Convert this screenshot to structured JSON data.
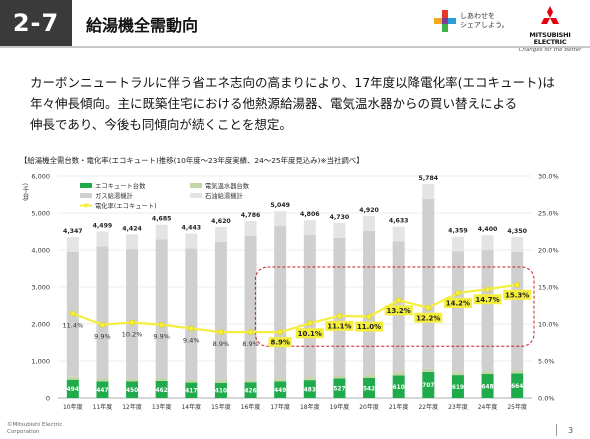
{
  "header": {
    "section": "2-7",
    "title": "給湯機全需動向",
    "logo_share_line1": "しあわせを",
    "logo_share_line2": "シェアしよう。",
    "logo_brand_line1": "MITSUBISHI",
    "logo_brand_line2": "ELECTRIC",
    "logo_slogan": "Changes for the Better"
  },
  "lead": {
    "line1": "カーボンニュートラルに伴う省エネ志向の高まりにより、17年度以降電化率(エコキュート)は",
    "line2": "年々伸長傾向。主に既築住宅における他熱源給湯器、電気温水器からの買い替えによる",
    "line3": "伸長であり、今後も同傾向が続くことを想定。"
  },
  "chart_title": "【給湯機全需台数・電化率(エコキュート)推移(10年度〜23年度実績、24〜25年度見込み)※当社調べ】",
  "unit_label": "(千台)",
  "footer": {
    "copyright_line1": "©Mitsubishi Electric",
    "copyright_line2": "Corporation",
    "page": "3"
  },
  "colors": {
    "ecocute": "#1faa4b",
    "water_heater": "#c3d4a8",
    "gas": "#cfcfcf",
    "oil": "#e4e4e4",
    "rate_line": "#f4ee3d",
    "highlight": "#cc1f1f"
  },
  "chart_data": {
    "type": "bar",
    "stacked": true,
    "categories": [
      "10年度",
      "11年度",
      "12年度",
      "13年度",
      "14年度",
      "15年度",
      "16年度",
      "17年度",
      "18年度",
      "19年度",
      "20年度",
      "21年度",
      "22年度",
      "23年度",
      "24年度",
      "25年度"
    ],
    "series": [
      {
        "name": "エコキュート台数",
        "values": [
          494,
          447,
          450,
          462,
          417,
          410,
          426,
          449,
          483,
          527,
          542,
          610,
          707,
          619,
          648,
          664
        ]
      },
      {
        "name": "電気温水器台数",
        "values": [
          80,
          80,
          80,
          80,
          80,
          80,
          80,
          80,
          80,
          80,
          80,
          80,
          80,
          80,
          80,
          80
        ]
      },
      {
        "name": "ガス給湯機計",
        "values": [
          3373,
          3572,
          3494,
          3743,
          3546,
          3730,
          3880,
          4120,
          3843,
          3723,
          3898,
          3543,
          4597,
          3260,
          3272,
          3206
        ]
      },
      {
        "name": "石油給湯機計",
        "values": [
          400,
          400,
          400,
          400,
          400,
          400,
          400,
          400,
          400,
          400,
          400,
          400,
          400,
          400,
          400,
          400
        ]
      }
    ],
    "totals": [
      4347,
      4499,
      4424,
      4685,
      4443,
      4620,
      4786,
      5049,
      4806,
      4730,
      4920,
      4633,
      5784,
      4359,
      4400,
      4350
    ],
    "ecocute_labels": [
      "494",
      "447",
      "450",
      "462",
      "417",
      "410",
      "426",
      "449",
      "483",
      "527",
      "542",
      "610",
      "707",
      "619",
      "648",
      "664"
    ],
    "totals_labels": [
      "4,347",
      "4,499",
      "4,424",
      "4,685",
      "4,443",
      "4,620",
      "4,786",
      "5,049",
      "4,806",
      "4,730",
      "4,920",
      "4,633",
      "5,784",
      "4,359",
      "4,400",
      "4,350"
    ],
    "rate_series": {
      "name": "電化率(エコキュート)",
      "values": [
        11.4,
        9.9,
        10.2,
        9.9,
        9.4,
        8.9,
        8.9,
        8.9,
        10.1,
        11.1,
        11.0,
        13.2,
        12.2,
        14.2,
        14.7,
        15.3
      ]
    },
    "rate_labels": [
      "11.4%",
      "9.9%",
      "10.2%",
      "9.9%",
      "9.4%",
      "8.9%",
      "8.9%",
      "8.9%",
      "10.1%",
      "11.1%",
      "11.0%",
      "13.2%",
      "12.2%",
      "14.2%",
      "14.7%",
      "15.3%"
    ],
    "highlight_from_index": 7,
    "y_left": {
      "min": 0,
      "max": 6000,
      "ticks": [
        "0",
        "1,000",
        "2,000",
        "3,000",
        "4,000",
        "5,000",
        "6,000"
      ],
      "tick_values": [
        0,
        1000,
        2000,
        3000,
        4000,
        5000,
        6000
      ]
    },
    "y_right": {
      "min": 0,
      "max": 30,
      "ticks": [
        "0.0%",
        "5.0%",
        "10.0%",
        "15.0%",
        "20.0%",
        "25.0%",
        "30.0%"
      ],
      "tick_values": [
        0,
        5,
        10,
        15,
        20,
        25,
        30
      ]
    },
    "grid": true,
    "legend_position": "top-left"
  }
}
